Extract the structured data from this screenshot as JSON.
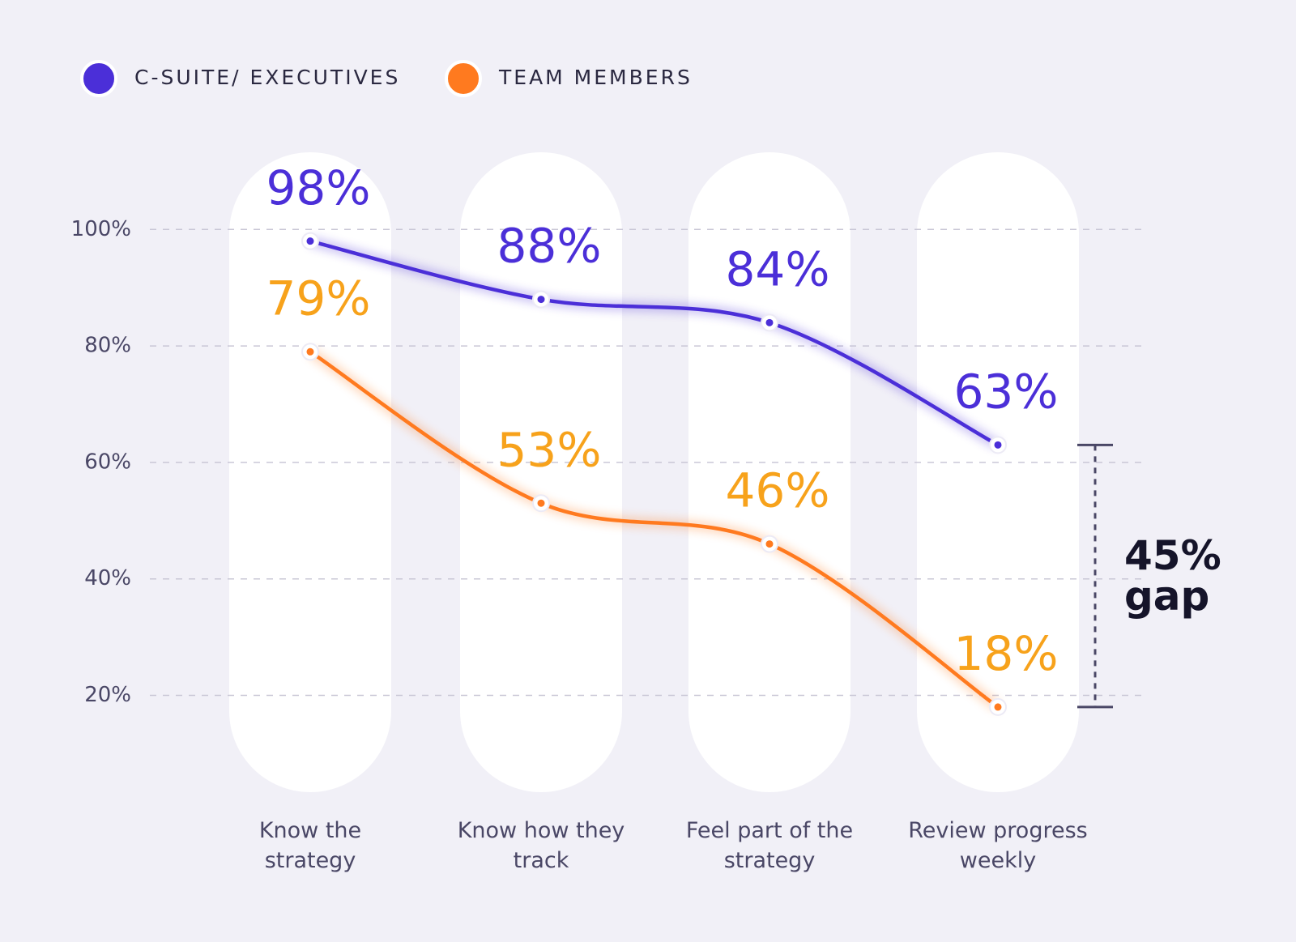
{
  "chart_data": {
    "type": "line",
    "categories": [
      "Know the strategy",
      "Know how they track",
      "Feel part of the strategy",
      "Review progress weekly"
    ],
    "series": [
      {
        "name": "C-SUITE/ EXECUTIVES",
        "color": "#4b2fd8",
        "label_color": "#4b2fd8",
        "values": [
          98,
          88,
          84,
          63
        ],
        "value_labels": [
          "98%",
          "88%",
          "84%",
          "63%"
        ]
      },
      {
        "name": "TEAM MEMBERS",
        "color": "#ff7a1f",
        "label_color": "#f7a21b",
        "values": [
          79,
          53,
          46,
          18
        ],
        "value_labels": [
          "79%",
          "53%",
          "46%",
          "18%"
        ]
      }
    ],
    "ylim": [
      7,
      112
    ],
    "yticks": [
      {
        "value": 20,
        "label": "20%"
      },
      {
        "value": 40,
        "label": "40%"
      },
      {
        "value": 60,
        "label": "60%"
      },
      {
        "value": 80,
        "label": "80%"
      },
      {
        "value": 100,
        "label": "100%"
      }
    ],
    "grid": true,
    "legend": "top-left",
    "annotation": "45% gap"
  }
}
